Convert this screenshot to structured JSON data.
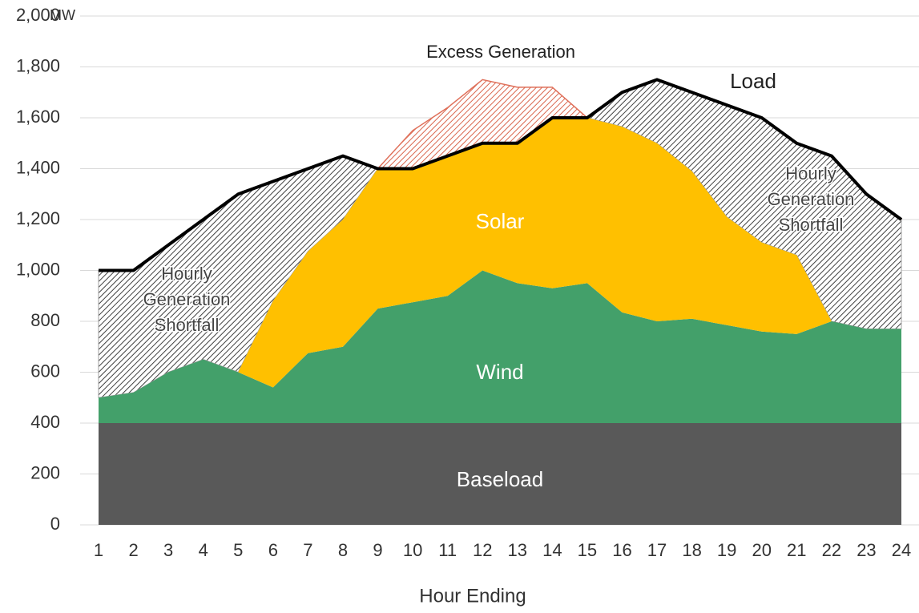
{
  "chart_data": {
    "type": "stacked-area",
    "x_label": "Hour Ending",
    "y_label": "MW",
    "x": [
      1,
      2,
      3,
      4,
      5,
      6,
      7,
      8,
      9,
      10,
      11,
      12,
      13,
      14,
      15,
      16,
      17,
      18,
      19,
      20,
      21,
      22,
      23,
      24
    ],
    "xlim": [
      1,
      24
    ],
    "ylim": [
      0,
      2000
    ],
    "yticks": [
      0,
      {
        "value": 200,
        "label": "200"
      },
      {
        "value": 400,
        "label": "400"
      },
      {
        "value": 600,
        "label": "600"
      },
      {
        "value": 800,
        "label": "800"
      },
      {
        "value": 1000,
        "label": "1,000"
      },
      {
        "value": 1200,
        "label": "1,200"
      },
      {
        "value": 1400,
        "label": "1,400"
      },
      {
        "value": 1600,
        "label": "1,600"
      },
      {
        "value": 1800,
        "label": "1,800"
      },
      {
        "value": 2000,
        "label": "2,000"
      }
    ],
    "grid": true,
    "series": [
      {
        "name": "Baseload",
        "color": "#595959",
        "values": [
          400,
          400,
          400,
          400,
          400,
          400,
          400,
          400,
          400,
          400,
          400,
          400,
          400,
          400,
          400,
          400,
          400,
          400,
          400,
          400,
          400,
          400,
          400,
          400
        ]
      },
      {
        "name": "Wind",
        "color": "#43a06a",
        "values": [
          100,
          120,
          200,
          250,
          200,
          140,
          275,
          300,
          450,
          475,
          500,
          600,
          550,
          530,
          550,
          435,
          400,
          410,
          385,
          360,
          350,
          400,
          370,
          370
        ]
      },
      {
        "name": "Solar",
        "color": "#ffc000",
        "values": [
          0,
          0,
          0,
          0,
          0,
          340,
          400,
          500,
          550,
          675,
          740,
          750,
          770,
          790,
          650,
          730,
          700,
          580,
          425,
          350,
          310,
          0,
          0,
          0
        ]
      },
      {
        "name": "Load",
        "color": "#000000",
        "kind": "line",
        "values": [
          1000,
          1000,
          1100,
          1200,
          1300,
          1350,
          1400,
          1450,
          1400,
          1400,
          1450,
          1500,
          1500,
          1600,
          1600,
          1700,
          1750,
          1700,
          1650,
          1600,
          1500,
          1450,
          1300,
          1200
        ]
      }
    ],
    "annotations": {
      "excess": "Excess Generation",
      "shortfall_left": [
        "Hourly",
        "Generation",
        "Shortfall"
      ],
      "shortfall_right": [
        "Hourly",
        "Generation",
        "Shortfall"
      ]
    }
  }
}
